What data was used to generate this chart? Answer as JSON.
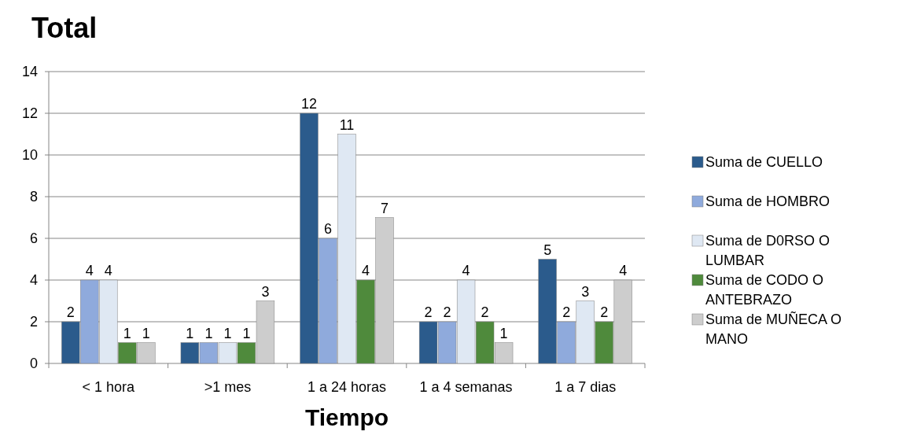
{
  "chart_data": {
    "type": "bar",
    "title": "Total",
    "xlabel": "Tiempo",
    "categories": [
      "< 1 hora",
      ">1 mes",
      "1 a 24 horas",
      "1 a 4 semanas",
      "1 a 7 dias"
    ],
    "series": [
      {
        "name": "Suma de CUELLO",
        "color": "#2b5b8c",
        "values": [
          2,
          1,
          12,
          2,
          5
        ]
      },
      {
        "name": "Suma de HOMBRO",
        "color": "#8faadc",
        "values": [
          4,
          1,
          6,
          2,
          2
        ]
      },
      {
        "name": "Suma de D0RSO O LUMBAR",
        "color": "#dfe8f3",
        "values": [
          4,
          1,
          11,
          4,
          3
        ]
      },
      {
        "name": "Suma de CODO O ANTEBRAZO",
        "color": "#4f8a3c",
        "values": [
          1,
          1,
          4,
          2,
          2
        ]
      },
      {
        "name": "Suma de MUÑECA O MANO",
        "color": "#cdcdcd",
        "values": [
          1,
          3,
          7,
          1,
          4
        ]
      }
    ],
    "ylim": [
      0,
      14
    ],
    "yticks": [
      0,
      2,
      4,
      6,
      8,
      10,
      12,
      14
    ],
    "grid": "y",
    "legend": "right",
    "data_labels": true
  }
}
